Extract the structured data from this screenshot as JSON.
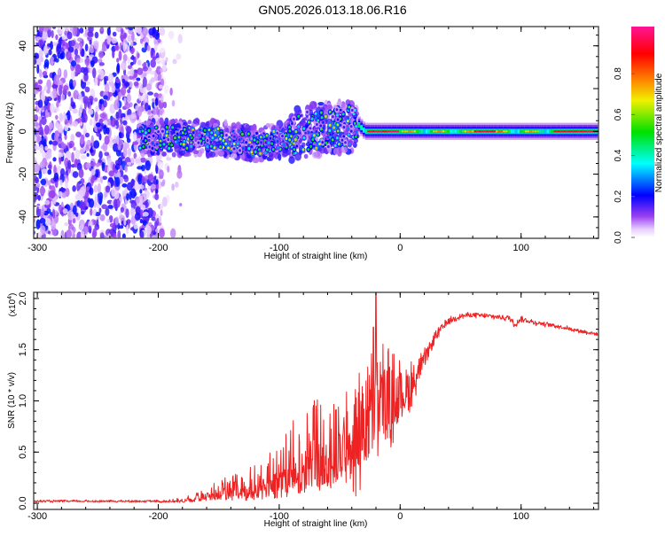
{
  "title": "GN05.2026.013.18.06.R16",
  "chart_data": [
    {
      "type": "heatmap",
      "name": "spectrogram",
      "xlabel": "Height of straight line (km)",
      "ylabel": "Frequency (Hz)",
      "xlim": [
        -303,
        164
      ],
      "ylim": [
        -50,
        49
      ],
      "xticks": [
        -300,
        -200,
        -100,
        0,
        100
      ],
      "xtick_labels": [
        "-300",
        "-200",
        "-100",
        "0",
        "100"
      ],
      "yticks": [
        -40,
        -20,
        0,
        20,
        40
      ],
      "ytick_labels": [
        "-40",
        "-20",
        "0",
        "20",
        "40"
      ],
      "ridge": {
        "x": [
          -215,
          -180,
          -150,
          -120,
          -100,
          -80,
          -50,
          -35,
          -30,
          0,
          164
        ],
        "freq": [
          -3,
          -3,
          -3,
          -6,
          -4,
          0,
          2,
          3,
          0,
          0,
          0
        ]
      },
      "regions": [
        {
          "x_range": [
            -303,
            -195
          ],
          "freq_spread": 50,
          "amplitude": [
            0.03,
            0.22
          ]
        },
        {
          "x_range": [
            -215,
            -35
          ],
          "freq_spread": 10,
          "amplitude": [
            0.15,
            0.7
          ]
        },
        {
          "x_range": [
            -35,
            164
          ],
          "freq_spread": 2,
          "amplitude": [
            0.5,
            1.0
          ]
        }
      ],
      "colorbar": {
        "label": "Normalized spectral amplitude",
        "range": [
          0,
          1
        ],
        "ticks": [
          0.0,
          0.2,
          0.4,
          0.6,
          0.8
        ],
        "tick_labels": [
          "0.0",
          "0.2",
          "0.4",
          "0.6",
          "0.8"
        ],
        "colors": [
          "#ffffff",
          "#e6ccff",
          "#8a2be2",
          "#0000ff",
          "#00ffff",
          "#00e000",
          "#f0f000",
          "#ff8000",
          "#ff0000",
          "#ff1493"
        ]
      }
    },
    {
      "type": "line",
      "name": "snr",
      "xlabel": "Height of straight line (km)",
      "ylabel": "SNR (10 * v/v)",
      "y_multiplier": "(x10",
      "y_multiplier_exp": "4",
      "y_multiplier_close": ")",
      "xlim": [
        -303,
        164
      ],
      "ylim": [
        -0.06,
        2.06
      ],
      "xticks": [
        -300,
        -200,
        -100,
        0,
        100
      ],
      "xtick_labels": [
        "-300",
        "-200",
        "-100",
        "0",
        "100"
      ],
      "yticks": [
        0.0,
        0.5,
        1.0,
        1.5,
        2.0
      ],
      "ytick_labels": [
        "0.0",
        "0.5",
        "1.0",
        "1.5",
        "2.0"
      ],
      "color": "#ee2222",
      "series": [
        {
          "name": "SNR",
          "x": [
            -303,
            -200,
            -180,
            -160,
            -150,
            -130,
            -110,
            -100,
            -90,
            -80,
            -70,
            -60,
            -50,
            -40,
            -30,
            -20,
            -10,
            0,
            10,
            20,
            30,
            40,
            50,
            60,
            70,
            80,
            90,
            95,
            100,
            110,
            130,
            150,
            164
          ],
          "y": [
            0.02,
            0.02,
            0.03,
            0.06,
            0.1,
            0.08,
            0.12,
            0.15,
            0.25,
            0.3,
            0.4,
            0.45,
            0.55,
            0.65,
            0.75,
            0.95,
            1.0,
            1.05,
            1.15,
            1.4,
            1.65,
            1.78,
            1.83,
            1.84,
            1.83,
            1.82,
            1.81,
            1.75,
            1.8,
            1.77,
            1.73,
            1.68,
            1.65
          ],
          "noise": [
            0.01,
            0.01,
            0.02,
            0.05,
            0.1,
            0.12,
            0.18,
            0.25,
            0.3,
            0.35,
            0.38,
            0.4,
            0.45,
            0.5,
            0.55,
            0.6,
            0.45,
            0.3,
            0.25,
            0.15,
            0.1,
            0.05,
            0.04,
            0.04,
            0.04,
            0.04,
            0.05,
            0.05,
            0.04,
            0.04,
            0.03,
            0.03,
            0.03
          ]
        }
      ],
      "spike": {
        "x": -20,
        "y": 2.05
      }
    }
  ]
}
